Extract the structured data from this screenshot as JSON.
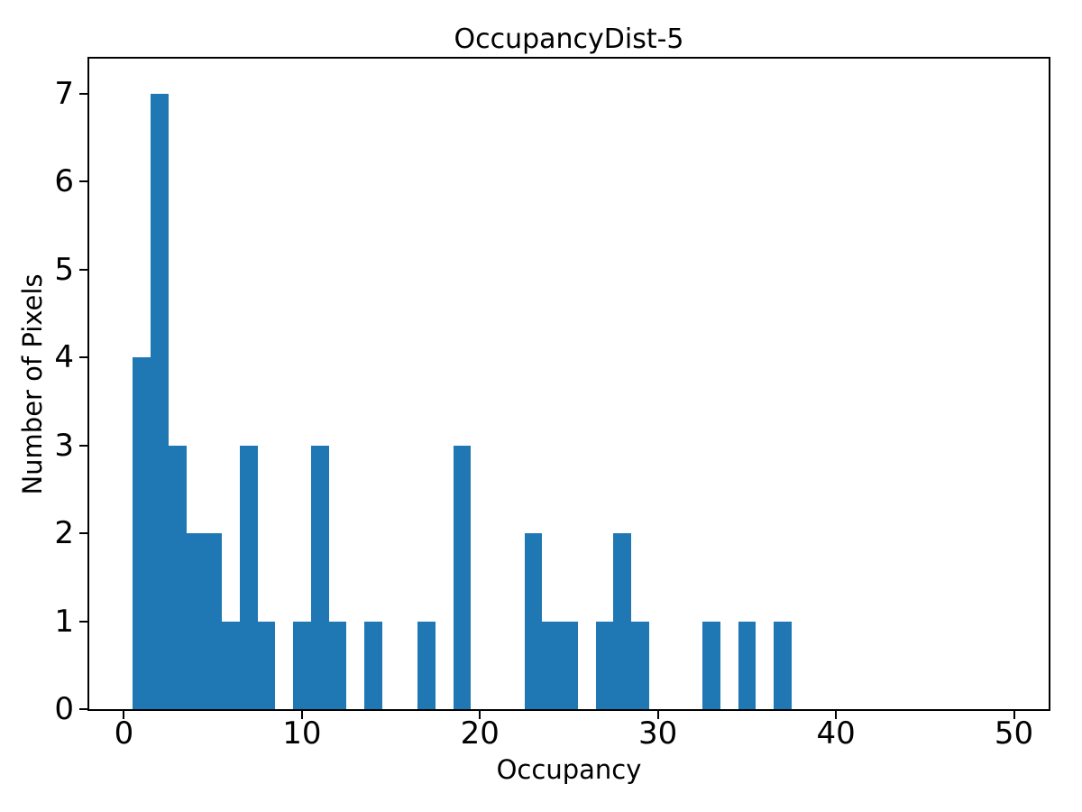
{
  "chart_data": {
    "type": "bar",
    "subtype": "histogram",
    "title": "OccupancyDist-5",
    "xlabel": "Occupancy",
    "ylabel": "Number of Pixels",
    "bar_color": "#1f77b4",
    "text_color": "#000000",
    "background_color": "#ffffff",
    "grid": false,
    "legend": "none",
    "bin_width": 1,
    "bin_centers": [
      1,
      2,
      3,
      4,
      5,
      6,
      7,
      8,
      9,
      10,
      11,
      12,
      13,
      14,
      15,
      16,
      17,
      18,
      19,
      20,
      21,
      22,
      23,
      24,
      25,
      26,
      27,
      28,
      29,
      30,
      31,
      32,
      33,
      34,
      35,
      36,
      37
    ],
    "values": [
      4,
      7,
      3,
      2,
      2,
      1,
      3,
      1,
      0,
      1,
      3,
      1,
      0,
      1,
      0,
      0,
      1,
      0,
      3,
      0,
      0,
      0,
      2,
      1,
      1,
      0,
      1,
      2,
      1,
      0,
      0,
      0,
      1,
      0,
      1,
      0,
      1
    ],
    "xlim": [
      -1.95,
      51.95
    ],
    "ylim": [
      0,
      7.4
    ],
    "xticks": [
      0,
      10,
      20,
      30,
      40,
      50
    ],
    "yticks": [
      0,
      1,
      2,
      3,
      4,
      5,
      6,
      7
    ]
  }
}
